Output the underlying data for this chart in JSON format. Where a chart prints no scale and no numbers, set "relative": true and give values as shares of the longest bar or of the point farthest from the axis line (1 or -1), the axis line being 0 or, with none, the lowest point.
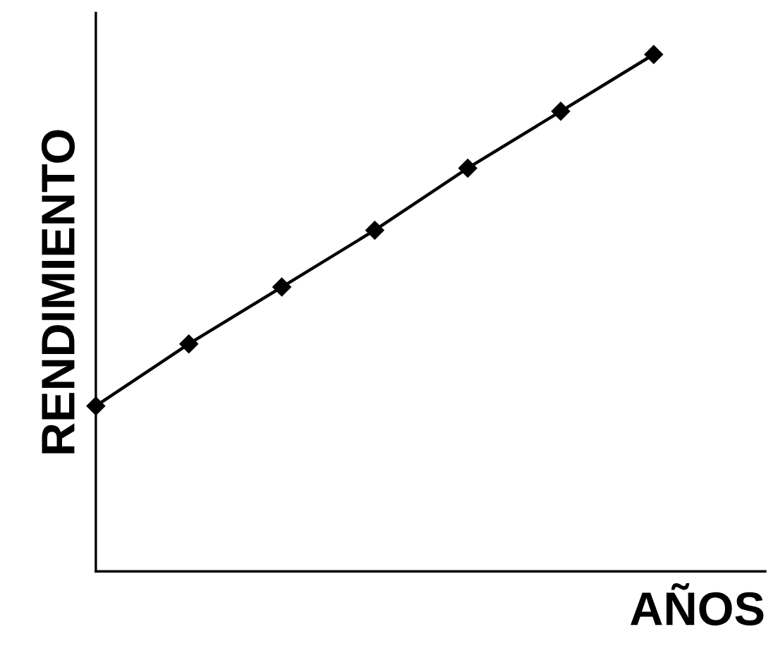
{
  "chart_data": {
    "type": "line",
    "xlabel": "AÑOS",
    "ylabel": "RENDIMIENTO",
    "relative": true,
    "categories": [
      null,
      null,
      null,
      null,
      null,
      null,
      null
    ],
    "series": [
      {
        "color": "#000000",
        "values": [
          0.32,
          0.44,
          0.55,
          0.66,
          0.78,
          0.89,
          1.0
        ]
      }
    ],
    "marker": "diamond",
    "line_style": "solid",
    "grid": false,
    "tick_labels": false
  }
}
